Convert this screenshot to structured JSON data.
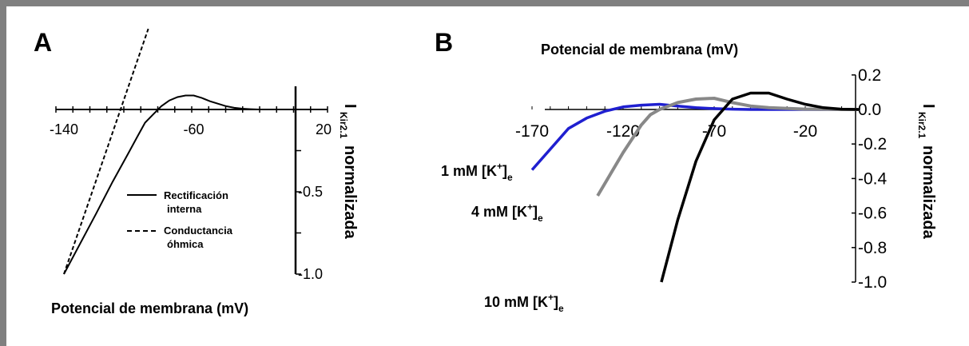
{
  "chart_data": [
    {
      "panel": "A",
      "type": "line",
      "xlabel": "Potencial de membrana (mV)",
      "ylabel_main": "I",
      "ylabel_sub": "Kir2.1",
      "ylabel_rest": "normalizada",
      "x_ticks": [
        -140,
        -60,
        20
      ],
      "y_ticks": [
        {
          "value": -0.5,
          "label": "-0.5"
        },
        {
          "value": -1.0,
          "label": "-1.0"
        }
      ],
      "xlim": [
        -140,
        20
      ],
      "ylim": [
        -1.05,
        0.55
      ],
      "legend": [
        {
          "label_lines": [
            "Rectificación",
            "interna"
          ],
          "style": "solid"
        },
        {
          "label_lines": [
            "Conductancia",
            "óhmica"
          ],
          "style": "dashed"
        }
      ],
      "series": [
        {
          "name": "Rectificación interna",
          "style": "solid",
          "x": [
            -140,
            -120,
            -110,
            -100,
            -95,
            -90,
            -85,
            -80,
            -75,
            -70,
            -65,
            -60,
            -55,
            -50,
            -45,
            -40,
            -35,
            -30,
            -25,
            -20,
            -10,
            0,
            20
          ],
          "y": [
            -1.0,
            -0.63,
            -0.44,
            -0.26,
            -0.17,
            -0.08,
            -0.03,
            0.02,
            0.055,
            0.075,
            0.085,
            0.085,
            0.07,
            0.05,
            0.035,
            0.02,
            0.01,
            0.005,
            0.002,
            0.0,
            0.0,
            0.0,
            0.0
          ]
        },
        {
          "name": "Conductancia óhmica",
          "style": "dashed",
          "x": [
            -140,
            -88
          ],
          "y": [
            -1.0,
            0.49
          ]
        }
      ]
    },
    {
      "panel": "B",
      "type": "line",
      "xlabel": "Potencial de membrana (mV)",
      "ylabel_main": "I",
      "ylabel_sub": "Kir2.1",
      "ylabel_rest": "normalizada",
      "x_ticks": [
        -170,
        -120,
        -70,
        -20
      ],
      "y_ticks": [
        {
          "value": 0.2,
          "label": "0.2"
        },
        {
          "value": 0.0,
          "label": "0.0"
        },
        {
          "value": -0.2,
          "label": "-0.2"
        },
        {
          "value": -0.4,
          "label": "-0.4"
        },
        {
          "value": -0.6,
          "label": "-0.6"
        },
        {
          "value": -0.8,
          "label": "-0.8"
        },
        {
          "value": -1.0,
          "label": "-1.0"
        }
      ],
      "xlim": [
        -170,
        10
      ],
      "ylim": [
        -1.0,
        0.2
      ],
      "series": [
        {
          "label_main": "1 mM [K",
          "label_sup": "+",
          "label_close": "]",
          "label_sub": "e",
          "color": "#1f1fd0",
          "x": [
            -170,
            -150,
            -140,
            -130,
            -120,
            -110,
            -100,
            -90,
            -80,
            -70,
            -60,
            -50,
            -40,
            -20,
            0,
            10
          ],
          "y": [
            -0.35,
            -0.11,
            -0.05,
            -0.01,
            0.015,
            0.025,
            0.03,
            0.02,
            0.01,
            0.005,
            0.002,
            0.0,
            0.0,
            0.0,
            0.0,
            0.0
          ]
        },
        {
          "label_main": "4 mM [K",
          "label_sup": "+",
          "label_close": "]",
          "label_sub": "e",
          "color": "#888888",
          "x": [
            -134,
            -120,
            -110,
            -105,
            -100,
            -90,
            -80,
            -70,
            -60,
            -50,
            -40,
            -20,
            0,
            10
          ],
          "y": [
            -0.5,
            -0.25,
            -0.09,
            -0.03,
            0.0,
            0.04,
            0.06,
            0.065,
            0.04,
            0.02,
            0.01,
            0.002,
            0.0,
            0.0
          ],
          "stroke_width": 4
        },
        {
          "label_main": "10 mM [K",
          "label_sup": "+",
          "label_close": "]",
          "label_sub": "e",
          "color": "#000000",
          "x": [
            -99,
            -90,
            -80,
            -70,
            -60,
            -50,
            -40,
            -30,
            -20,
            -10,
            0,
            10
          ],
          "y": [
            -1.0,
            -0.64,
            -0.3,
            -0.06,
            0.06,
            0.095,
            0.095,
            0.06,
            0.03,
            0.01,
            0.002,
            0.0
          ]
        }
      ]
    }
  ]
}
